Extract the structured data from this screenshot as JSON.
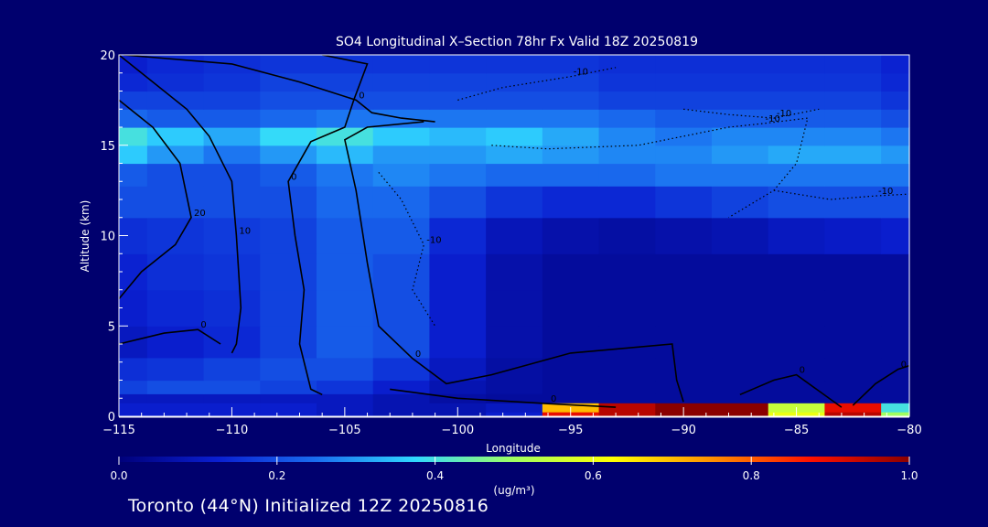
{
  "chart_data": {
    "type": "heatmap",
    "title": "SO4 Longitudinal X–Section 78hr  Fx Valid 18Z 20250819",
    "xlabel": "Longitude",
    "ylabel": "Altitude (km)",
    "xlim": [
      -115,
      -80
    ],
    "ylim": [
      0,
      20
    ],
    "x_ticks": [
      -115,
      -110,
      -105,
      -100,
      -95,
      -90,
      -85,
      -80
    ],
    "x_tick_labels": [
      "−115",
      "−110",
      "−105",
      "−100",
      "−95",
      "−90",
      "−85",
      "−80"
    ],
    "y_ticks": [
      0,
      5,
      10,
      15,
      20
    ],
    "y_tick_labels": [
      "0",
      "5",
      "10",
      "15",
      "20"
    ],
    "colorbar": {
      "min": 0.0,
      "max": 1.0,
      "ticks": [
        0.0,
        0.2,
        0.4,
        0.6,
        0.8,
        1.0
      ],
      "tick_labels": [
        "0.0",
        "0.2",
        "0.4",
        "0.6",
        "0.8",
        "1.0"
      ],
      "units": "(ug/m³)",
      "colormap": [
        "#00007a",
        "#0a1fd0",
        "#1a6ef0",
        "#30d8ff",
        "#a0ff60",
        "#ffff00",
        "#ff9000",
        "#ff1000",
        "#8a0000"
      ]
    },
    "x": [
      -115,
      -112.5,
      -110,
      -107.5,
      -105,
      -102.5,
      -100,
      -97.5,
      -95,
      -92.5,
      -90,
      -87.5,
      -85,
      -82.5,
      -80
    ],
    "z_levels": [
      0,
      0.5,
      1,
      1.5,
      2.5,
      4,
      6,
      8,
      10,
      12,
      13.5,
      14.5,
      15.5,
      16.5,
      17.5,
      18.5,
      19.5
    ],
    "z": [
      [
        0.12,
        0.12,
        0.12,
        0.12,
        0.1,
        0.08,
        0.08,
        0.12,
        0.9,
        0.95,
        1.0,
        1.0,
        0.6,
        0.95,
        0.5
      ],
      [
        0.12,
        0.12,
        0.12,
        0.12,
        0.1,
        0.08,
        0.08,
        0.1,
        0.7,
        0.95,
        1.0,
        1.0,
        0.55,
        0.9,
        0.4
      ],
      [
        0.1,
        0.1,
        0.1,
        0.1,
        0.1,
        0.08,
        0.06,
        0.05,
        0.05,
        0.05,
        0.05,
        0.05,
        0.05,
        0.05,
        0.05
      ],
      [
        0.18,
        0.2,
        0.2,
        0.18,
        0.16,
        0.12,
        0.08,
        0.06,
        0.05,
        0.05,
        0.05,
        0.05,
        0.05,
        0.05,
        0.05
      ],
      [
        0.15,
        0.16,
        0.18,
        0.2,
        0.2,
        0.16,
        0.1,
        0.06,
        0.05,
        0.05,
        0.05,
        0.05,
        0.05,
        0.05,
        0.05
      ],
      [
        0.1,
        0.12,
        0.14,
        0.18,
        0.22,
        0.2,
        0.12,
        0.07,
        0.05,
        0.05,
        0.05,
        0.05,
        0.05,
        0.05,
        0.05
      ],
      [
        0.12,
        0.14,
        0.15,
        0.18,
        0.22,
        0.2,
        0.12,
        0.07,
        0.05,
        0.05,
        0.05,
        0.05,
        0.05,
        0.05,
        0.05
      ],
      [
        0.13,
        0.15,
        0.16,
        0.18,
        0.22,
        0.2,
        0.12,
        0.07,
        0.05,
        0.05,
        0.05,
        0.05,
        0.05,
        0.05,
        0.05
      ],
      [
        0.15,
        0.16,
        0.17,
        0.18,
        0.22,
        0.22,
        0.14,
        0.09,
        0.07,
        0.06,
        0.07,
        0.08,
        0.1,
        0.11,
        0.12
      ],
      [
        0.2,
        0.2,
        0.2,
        0.2,
        0.24,
        0.24,
        0.2,
        0.16,
        0.14,
        0.14,
        0.16,
        0.18,
        0.2,
        0.2,
        0.2
      ],
      [
        0.22,
        0.2,
        0.2,
        0.22,
        0.26,
        0.28,
        0.26,
        0.24,
        0.24,
        0.24,
        0.26,
        0.26,
        0.26,
        0.26,
        0.26
      ],
      [
        0.36,
        0.3,
        0.26,
        0.3,
        0.34,
        0.3,
        0.3,
        0.32,
        0.3,
        0.28,
        0.28,
        0.3,
        0.32,
        0.32,
        0.3
      ],
      [
        0.4,
        0.36,
        0.32,
        0.38,
        0.4,
        0.36,
        0.34,
        0.36,
        0.32,
        0.28,
        0.26,
        0.28,
        0.28,
        0.28,
        0.26
      ],
      [
        0.24,
        0.22,
        0.22,
        0.24,
        0.26,
        0.26,
        0.26,
        0.26,
        0.26,
        0.24,
        0.22,
        0.22,
        0.22,
        0.22,
        0.2
      ],
      [
        0.18,
        0.18,
        0.18,
        0.2,
        0.2,
        0.2,
        0.2,
        0.2,
        0.2,
        0.18,
        0.18,
        0.18,
        0.18,
        0.18,
        0.16
      ],
      [
        0.14,
        0.15,
        0.16,
        0.18,
        0.18,
        0.18,
        0.18,
        0.18,
        0.18,
        0.16,
        0.16,
        0.16,
        0.16,
        0.16,
        0.14
      ],
      [
        0.12,
        0.14,
        0.15,
        0.16,
        0.16,
        0.16,
        0.16,
        0.16,
        0.16,
        0.15,
        0.15,
        0.15,
        0.15,
        0.15,
        0.13
      ]
    ],
    "contours": [
      {
        "label": "0",
        "style": "solid",
        "points": [
          [
            -114.8,
            20
          ],
          [
            -110,
            19.5
          ],
          [
            -107,
            18.5
          ],
          [
            -104.5,
            17.5
          ],
          [
            -103.8,
            16.8
          ],
          [
            -102.5,
            16.5
          ],
          [
            -101,
            16.3
          ]
        ]
      },
      {
        "label": "0",
        "style": "solid",
        "points": [
          [
            -106,
            20
          ],
          [
            -104,
            19.5
          ],
          [
            -104.6,
            17.5
          ],
          [
            -105,
            16
          ],
          [
            -106.5,
            15.2
          ],
          [
            -107.5,
            13
          ],
          [
            -107.2,
            10
          ],
          [
            -106.8,
            7
          ],
          [
            -107,
            4
          ],
          [
            -106.5,
            1.5
          ],
          [
            -106,
            1.2
          ]
        ]
      },
      {
        "label": "0",
        "style": "solid",
        "points": [
          [
            -101.5,
            16.3
          ],
          [
            -104,
            16
          ],
          [
            -105,
            15.3
          ],
          [
            -104.5,
            12.5
          ],
          [
            -104,
            8.5
          ],
          [
            -103.5,
            5
          ],
          [
            -102,
            3.2
          ],
          [
            -100.5,
            1.8
          ],
          [
            -98.5,
            2.3
          ],
          [
            -95,
            3.5
          ],
          [
            -90.5,
            4
          ],
          [
            -90.3,
            2
          ],
          [
            -90,
            0.8
          ]
        ]
      },
      {
        "label": "10",
        "style": "solid",
        "points": [
          [
            -115,
            20
          ],
          [
            -112,
            17
          ],
          [
            -111,
            15.5
          ],
          [
            -110,
            13
          ],
          [
            -109.8,
            10
          ],
          [
            -109.6,
            6
          ],
          [
            -109.8,
            4
          ],
          [
            -110,
            3.5
          ]
        ]
      },
      {
        "label": "20",
        "style": "solid",
        "points": [
          [
            -115,
            17.5
          ],
          [
            -113.5,
            16
          ],
          [
            -112.3,
            14
          ],
          [
            -111.8,
            11
          ],
          [
            -112.5,
            9.5
          ],
          [
            -114,
            8
          ],
          [
            -115,
            6.5
          ]
        ]
      },
      {
        "label": "0",
        "style": "solid",
        "points": [
          [
            -115,
            4
          ],
          [
            -113,
            4.6
          ],
          [
            -111.5,
            4.8
          ],
          [
            -110.5,
            4
          ]
        ]
      },
      {
        "label": "0",
        "style": "solid",
        "points": [
          [
            -103,
            1.5
          ],
          [
            -100,
            1
          ],
          [
            -96,
            0.7
          ],
          [
            -93,
            0.5
          ]
        ]
      },
      {
        "label": "0",
        "style": "solid",
        "points": [
          [
            -87.5,
            1.2
          ],
          [
            -86,
            2
          ],
          [
            -85,
            2.3
          ],
          [
            -84,
            1.4
          ],
          [
            -83,
            0.5
          ]
        ]
      },
      {
        "label": "0",
        "style": "solid",
        "points": [
          [
            -82.5,
            0.6
          ],
          [
            -81.5,
            1.8
          ],
          [
            -80.5,
            2.6
          ],
          [
            -80,
            2.8
          ]
        ]
      },
      {
        "label": "-10",
        "style": "dotted",
        "points": [
          [
            -100,
            17.5
          ],
          [
            -98,
            18.2
          ],
          [
            -95,
            18.8
          ],
          [
            -93,
            19.3
          ]
        ]
      },
      {
        "label": "-10",
        "style": "dotted",
        "points": [
          [
            -98.5,
            15
          ],
          [
            -96,
            14.8
          ],
          [
            -92,
            15
          ],
          [
            -88,
            16
          ],
          [
            -86.5,
            16.2
          ],
          [
            -84.5,
            16.5
          ],
          [
            -85,
            14
          ],
          [
            -86,
            12.5
          ],
          [
            -88,
            11
          ]
        ]
      },
      {
        "label": "-10",
        "style": "dotted",
        "points": [
          [
            -103.5,
            13.5
          ],
          [
            -102.5,
            12
          ],
          [
            -101.5,
            9.5
          ],
          [
            -102,
            7
          ],
          [
            -101,
            5
          ]
        ]
      },
      {
        "label": "-10",
        "style": "dotted",
        "points": [
          [
            -90,
            17
          ],
          [
            -88,
            16.7
          ],
          [
            -86,
            16.5
          ],
          [
            -84,
            17
          ]
        ]
      },
      {
        "label": "-10",
        "style": "dotted",
        "points": [
          [
            -86,
            12.5
          ],
          [
            -83.5,
            12
          ],
          [
            -81.5,
            12.2
          ],
          [
            -80,
            12.3
          ]
        ]
      }
    ]
  },
  "footer": {
    "text": "Toronto (44°N) Initialized 12Z 20250816"
  }
}
